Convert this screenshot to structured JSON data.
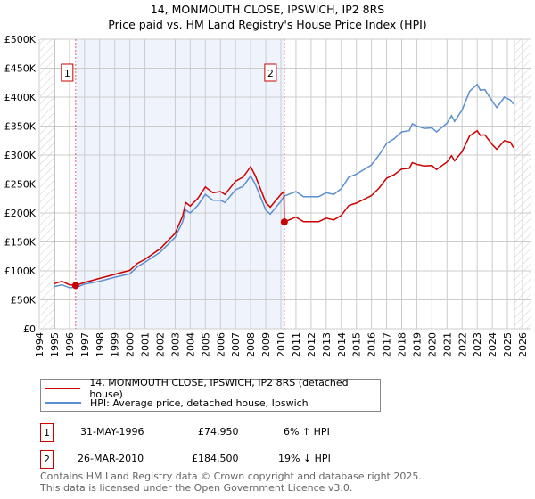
{
  "chart_data": {
    "type": "line",
    "title": "14, MONMOUTH CLOSE, IPSWICH, IP2 8RS",
    "subtitle": "Price paid vs. HM Land Registry's House Price Index (HPI)",
    "xlim": [
      1994,
      2026
    ],
    "ylim": [
      0,
      500000
    ],
    "x_ticks": [
      "1994",
      "1995",
      "1996",
      "1997",
      "1998",
      "1999",
      "2000",
      "2001",
      "2002",
      "2003",
      "2004",
      "2005",
      "2006",
      "2007",
      "2008",
      "2009",
      "2010",
      "2011",
      "2012",
      "2013",
      "2014",
      "2015",
      "2016",
      "2017",
      "2018",
      "2019",
      "2020",
      "2021",
      "2022",
      "2023",
      "2024",
      "2025",
      "2026"
    ],
    "y_ticks": [
      {
        "v": 0,
        "label": "£0"
      },
      {
        "v": 50000,
        "label": "£50K"
      },
      {
        "v": 100000,
        "label": "£100K"
      },
      {
        "v": 150000,
        "label": "£150K"
      },
      {
        "v": 200000,
        "label": "£200K"
      },
      {
        "v": 250000,
        "label": "£250K"
      },
      {
        "v": 300000,
        "label": "£300K"
      },
      {
        "v": 350000,
        "label": "£350K"
      },
      {
        "v": 400000,
        "label": "£400K"
      },
      {
        "v": 450000,
        "label": "£450K"
      },
      {
        "v": 500000,
        "label": "£500K"
      }
    ],
    "grid": true,
    "colors": {
      "price": "#cc0000",
      "hpi": "#5b8fd0"
    },
    "series": [
      {
        "name": "14, MONMOUTH CLOSE, IPSWICH, IP2 8RS (detached house)",
        "color": "#cc0000",
        "x": [
          1995,
          1995.5,
          1996,
          1996.41,
          1997,
          1998,
          1999,
          2000,
          2000.5,
          2001,
          2002,
          2003,
          2003.5,
          2003.7,
          2004,
          2004.5,
          2005,
          2005.5,
          2006,
          2006.3,
          2007,
          2007.5,
          2008,
          2008.3,
          2009,
          2009.3,
          2010,
          2010.2,
          2010.23,
          2011,
          2011.5,
          2012,
          2012.5,
          2013,
          2013.5,
          2014,
          2014.5,
          2015,
          2016,
          2016.5,
          2017,
          2017.5,
          2018,
          2018.5,
          2018.7,
          2019,
          2019.5,
          2020,
          2020.3,
          2021,
          2021.3,
          2021.5,
          2022,
          2022.5,
          2023,
          2023.2,
          2023.5,
          2024,
          2024.3,
          2024.8,
          2025.2,
          2025.4
        ],
        "y": [
          78,
          82,
          76,
          74.95,
          80,
          87,
          94,
          101,
          113,
          120,
          138,
          165,
          195,
          218,
          212,
          225,
          245,
          235,
          237,
          232,
          255,
          262,
          280,
          265,
          218,
          210,
          232,
          237,
          184.5,
          193,
          185,
          185,
          185,
          191,
          188,
          196,
          213,
          217,
          230,
          243,
          260,
          266,
          276,
          277,
          287,
          284,
          281,
          282,
          275,
          288,
          299,
          290,
          306,
          333,
          342,
          334,
          335,
          318,
          310,
          325,
          322,
          313
        ]
      },
      {
        "name": "HPI: Average price, detached house, Ipswich",
        "color": "#5b8fd0",
        "x": [
          1995,
          1995.5,
          1996,
          1996.5,
          1997,
          1998,
          1999,
          2000,
          2000.5,
          2001,
          2002,
          2003,
          2003.5,
          2003.7,
          2004,
          2004.5,
          2005,
          2005.5,
          2006,
          2006.3,
          2007,
          2007.5,
          2008,
          2008.3,
          2009,
          2009.3,
          2010,
          2010.2,
          2011,
          2011.5,
          2012,
          2012.5,
          2013,
          2013.5,
          2014,
          2014.5,
          2015,
          2016,
          2016.5,
          2017,
          2017.5,
          2018,
          2018.5,
          2018.7,
          2019,
          2019.5,
          2020,
          2020.3,
          2021,
          2021.3,
          2021.5,
          2022,
          2022.5,
          2023,
          2023.2,
          2023.5,
          2024,
          2024.3,
          2024.8,
          2025.2,
          2025.4
        ],
        "y": [
          73,
          76,
          71,
          72,
          77,
          82,
          89,
          95,
          107,
          115,
          132,
          158,
          185,
          205,
          200,
          213,
          232,
          222,
          222,
          218,
          240,
          246,
          264,
          250,
          205,
          198,
          220,
          229,
          237,
          228,
          228,
          228,
          235,
          232,
          242,
          262,
          267,
          283,
          300,
          320,
          328,
          340,
          342,
          354,
          350,
          346,
          347,
          340,
          355,
          368,
          358,
          378,
          410,
          422,
          412,
          413,
          393,
          382,
          400,
          395,
          388
        ]
      }
    ],
    "y_unit": "thousand GBP",
    "sales": [
      {
        "n": "1",
        "x": 1996.41,
        "y": 74950
      },
      {
        "n": "2",
        "x": 2010.23,
        "y": 184500
      }
    ]
  },
  "legend": {
    "price": "14, MONMOUTH CLOSE, IPSWICH, IP2 8RS (detached house)",
    "hpi": "HPI: Average price, detached house, Ipswich"
  },
  "transactions": [
    {
      "n": "1",
      "date": "31-MAY-1996",
      "price": "£74,950",
      "hpi": "6% ↑ HPI"
    },
    {
      "n": "2",
      "date": "26-MAR-2010",
      "price": "£184,500",
      "hpi": "19% ↓ HPI"
    }
  ],
  "footer": [
    "Contains HM Land Registry data © Crown copyright and database right 2025.",
    "This data is licensed under the Open Government Licence v3.0."
  ]
}
